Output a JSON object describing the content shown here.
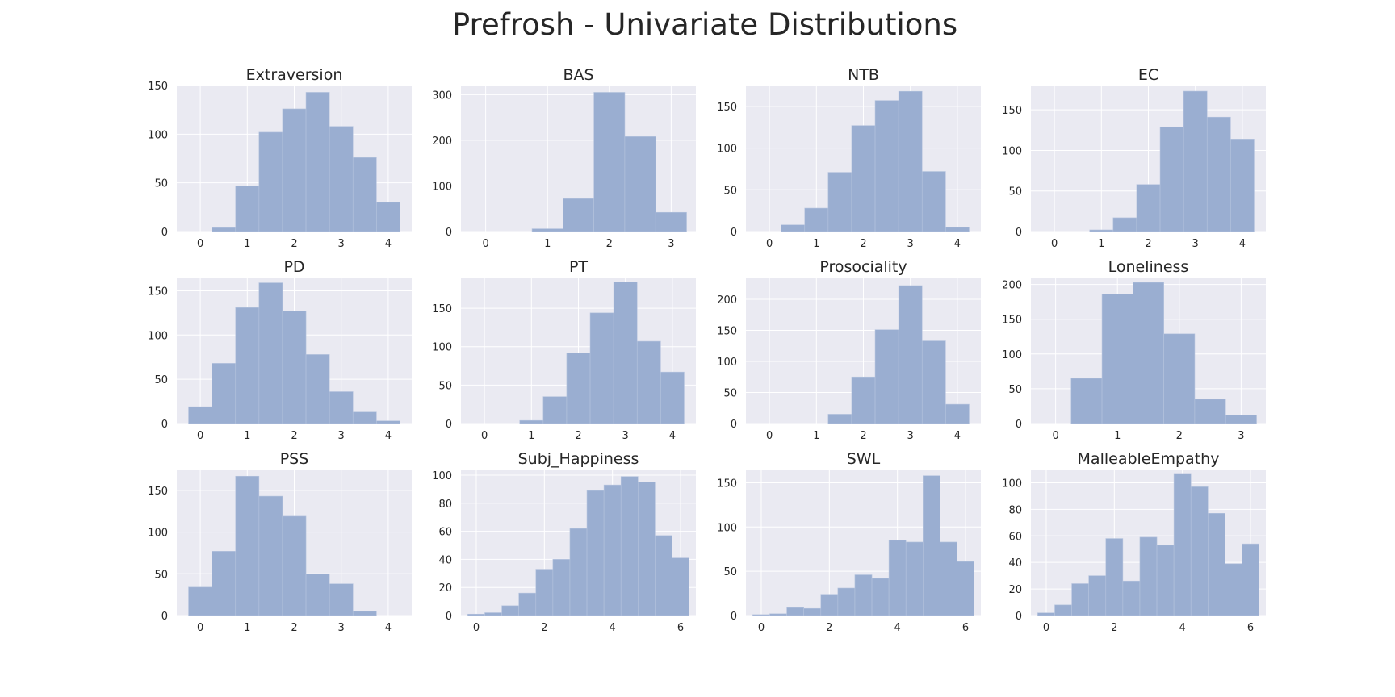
{
  "title": "Prefrosh - Univariate Distributions",
  "colors": {
    "axes_bg": "#eaeaf2",
    "bar": "#9aaed1",
    "grid": "#ffffff",
    "text": "#262626"
  },
  "chart_data": [
    {
      "type": "bar",
      "title": "Extraversion",
      "xlim": [
        -0.5,
        4.5
      ],
      "ylim": [
        0,
        150
      ],
      "xticks": [
        0,
        1,
        2,
        3,
        4
      ],
      "yticks": [
        0,
        50,
        100,
        150
      ],
      "grid": true,
      "bins": [
        [
          0.25,
          0.75,
          4
        ],
        [
          0.75,
          1.25,
          47
        ],
        [
          1.25,
          1.75,
          102
        ],
        [
          1.75,
          2.25,
          126
        ],
        [
          2.25,
          2.75,
          143
        ],
        [
          2.75,
          3.25,
          108
        ],
        [
          3.25,
          3.75,
          76
        ],
        [
          3.75,
          4.25,
          30
        ]
      ]
    },
    {
      "type": "bar",
      "title": "BAS",
      "xlim": [
        -0.4,
        3.4
      ],
      "ylim": [
        0,
        320
      ],
      "xticks": [
        0,
        1,
        2,
        3
      ],
      "yticks": [
        0,
        100,
        200,
        300
      ],
      "grid": true,
      "bins": [
        [
          0.75,
          1.25,
          6
        ],
        [
          1.25,
          1.75,
          72
        ],
        [
          1.75,
          2.25,
          305
        ],
        [
          2.25,
          2.75,
          208
        ],
        [
          2.75,
          3.25,
          42
        ]
      ]
    },
    {
      "type": "bar",
      "title": "NTB",
      "xlim": [
        -0.5,
        4.5
      ],
      "ylim": [
        0,
        175
      ],
      "xticks": [
        0,
        1,
        2,
        3,
        4
      ],
      "yticks": [
        0,
        50,
        100,
        150
      ],
      "grid": true,
      "bins": [
        [
          0.25,
          0.75,
          8
        ],
        [
          0.75,
          1.25,
          28
        ],
        [
          1.25,
          1.75,
          71
        ],
        [
          1.75,
          2.25,
          127
        ],
        [
          2.25,
          2.75,
          157
        ],
        [
          2.75,
          3.25,
          168
        ],
        [
          3.25,
          3.75,
          72
        ],
        [
          3.75,
          4.25,
          5
        ]
      ]
    },
    {
      "type": "bar",
      "title": "EC",
      "xlim": [
        -0.5,
        4.5
      ],
      "ylim": [
        0,
        180
      ],
      "xticks": [
        0,
        1,
        2,
        3,
        4
      ],
      "yticks": [
        0,
        50,
        100,
        150
      ],
      "grid": true,
      "bins": [
        [
          0.75,
          1.25,
          2
        ],
        [
          1.25,
          1.75,
          17
        ],
        [
          1.75,
          2.25,
          58
        ],
        [
          2.25,
          2.75,
          129
        ],
        [
          2.75,
          3.25,
          173
        ],
        [
          3.25,
          3.75,
          141
        ],
        [
          3.75,
          4.25,
          114
        ]
      ]
    },
    {
      "type": "bar",
      "title": "PD",
      "xlim": [
        -0.5,
        4.5
      ],
      "ylim": [
        0,
        165
      ],
      "xticks": [
        0,
        1,
        2,
        3,
        4
      ],
      "yticks": [
        0,
        50,
        100,
        150
      ],
      "grid": true,
      "bins": [
        [
          -0.25,
          0.25,
          19
        ],
        [
          0.25,
          0.75,
          68
        ],
        [
          0.75,
          1.25,
          131
        ],
        [
          1.25,
          1.75,
          159
        ],
        [
          1.75,
          2.25,
          127
        ],
        [
          2.25,
          2.75,
          78
        ],
        [
          2.75,
          3.25,
          36
        ],
        [
          3.25,
          3.75,
          13
        ],
        [
          3.75,
          4.25,
          3
        ]
      ]
    },
    {
      "type": "bar",
      "title": "PT",
      "xlim": [
        -0.5,
        4.5
      ],
      "ylim": [
        0,
        190
      ],
      "xticks": [
        0,
        1,
        2,
        3,
        4
      ],
      "yticks": [
        0,
        50,
        100,
        150
      ],
      "grid": true,
      "bins": [
        [
          0.75,
          1.25,
          4
        ],
        [
          1.25,
          1.75,
          35
        ],
        [
          1.75,
          2.25,
          92
        ],
        [
          2.25,
          2.75,
          144
        ],
        [
          2.75,
          3.25,
          184
        ],
        [
          3.25,
          3.75,
          107
        ],
        [
          3.75,
          4.25,
          67
        ]
      ]
    },
    {
      "type": "bar",
      "title": "Prosociality",
      "xlim": [
        -0.5,
        4.5
      ],
      "ylim": [
        0,
        235
      ],
      "xticks": [
        0,
        1,
        2,
        3,
        4
      ],
      "yticks": [
        0,
        50,
        100,
        150,
        200
      ],
      "grid": true,
      "bins": [
        [
          1.25,
          1.75,
          15
        ],
        [
          1.75,
          2.25,
          75
        ],
        [
          2.25,
          2.75,
          151
        ],
        [
          2.75,
          3.25,
          222
        ],
        [
          3.25,
          3.75,
          133
        ],
        [
          3.75,
          4.25,
          31
        ]
      ]
    },
    {
      "type": "bar",
      "title": "Loneliness",
      "xlim": [
        -0.4,
        3.4
      ],
      "ylim": [
        0,
        210
      ],
      "xticks": [
        0,
        1,
        2,
        3
      ],
      "yticks": [
        0,
        50,
        100,
        150,
        200
      ],
      "grid": true,
      "bins": [
        [
          0.25,
          0.75,
          65
        ],
        [
          0.75,
          1.25,
          186
        ],
        [
          1.25,
          1.75,
          203
        ],
        [
          1.75,
          2.25,
          129
        ],
        [
          2.25,
          2.75,
          35
        ],
        [
          2.75,
          3.25,
          12
        ]
      ]
    },
    {
      "type": "bar",
      "title": "PSS",
      "xlim": [
        -0.5,
        4.5
      ],
      "ylim": [
        0,
        175
      ],
      "xticks": [
        0,
        1,
        2,
        3,
        4
      ],
      "yticks": [
        0,
        50,
        100,
        150
      ],
      "grid": true,
      "bins": [
        [
          -0.25,
          0.25,
          34
        ],
        [
          0.25,
          0.75,
          77
        ],
        [
          0.75,
          1.25,
          167
        ],
        [
          1.25,
          1.75,
          143
        ],
        [
          1.75,
          2.25,
          119
        ],
        [
          2.25,
          2.75,
          50
        ],
        [
          2.75,
          3.25,
          38
        ],
        [
          3.25,
          3.75,
          5
        ]
      ]
    },
    {
      "type": "bar",
      "title": "Subj_Happiness",
      "xlim": [
        -0.45,
        6.45
      ],
      "ylim": [
        0,
        104
      ],
      "xticks": [
        0,
        2,
        4,
        6
      ],
      "yticks": [
        0,
        20,
        40,
        60,
        80,
        100
      ],
      "grid": true,
      "bins": [
        [
          -0.25,
          0.25,
          1
        ],
        [
          0.25,
          0.75,
          2
        ],
        [
          0.75,
          1.25,
          7
        ],
        [
          1.25,
          1.75,
          16
        ],
        [
          1.75,
          2.25,
          33
        ],
        [
          2.25,
          2.75,
          40
        ],
        [
          2.75,
          3.25,
          62
        ],
        [
          3.25,
          3.75,
          89
        ],
        [
          3.75,
          4.25,
          93
        ],
        [
          4.25,
          4.75,
          99
        ],
        [
          4.75,
          5.25,
          95
        ],
        [
          5.25,
          5.75,
          57
        ],
        [
          5.75,
          6.25,
          41
        ]
      ]
    },
    {
      "type": "bar",
      "title": "SWL",
      "xlim": [
        -0.45,
        6.45
      ],
      "ylim": [
        0,
        165
      ],
      "xticks": [
        0,
        2,
        4,
        6
      ],
      "yticks": [
        0,
        50,
        100,
        150
      ],
      "grid": true,
      "bins": [
        [
          -0.25,
          0.25,
          1
        ],
        [
          0.25,
          0.75,
          2
        ],
        [
          0.75,
          1.25,
          9
        ],
        [
          1.25,
          1.75,
          8
        ],
        [
          1.75,
          2.25,
          24
        ],
        [
          2.25,
          2.75,
          31
        ],
        [
          2.75,
          3.25,
          46
        ],
        [
          3.25,
          3.75,
          42
        ],
        [
          3.75,
          4.25,
          85
        ],
        [
          4.25,
          4.75,
          83
        ],
        [
          4.75,
          5.25,
          158
        ],
        [
          5.25,
          5.75,
          83
        ],
        [
          5.75,
          6.25,
          61
        ]
      ]
    },
    {
      "type": "bar",
      "title": "MalleableEmpathy",
      "xlim": [
        -0.45,
        6.45
      ],
      "ylim": [
        0,
        110
      ],
      "xticks": [
        0,
        2,
        4,
        6
      ],
      "yticks": [
        0,
        20,
        40,
        60,
        80,
        100
      ],
      "grid": true,
      "bins": [
        [
          -0.25,
          0.25,
          2
        ],
        [
          0.25,
          0.75,
          8
        ],
        [
          0.75,
          1.25,
          24
        ],
        [
          1.25,
          1.75,
          30
        ],
        [
          1.75,
          2.25,
          58
        ],
        [
          2.25,
          2.75,
          26
        ],
        [
          2.75,
          3.25,
          59
        ],
        [
          3.25,
          3.75,
          53
        ],
        [
          3.75,
          4.25,
          107
        ],
        [
          4.25,
          4.75,
          97
        ],
        [
          4.75,
          5.25,
          77
        ],
        [
          5.25,
          5.75,
          39
        ],
        [
          5.75,
          6.25,
          54
        ]
      ]
    }
  ]
}
